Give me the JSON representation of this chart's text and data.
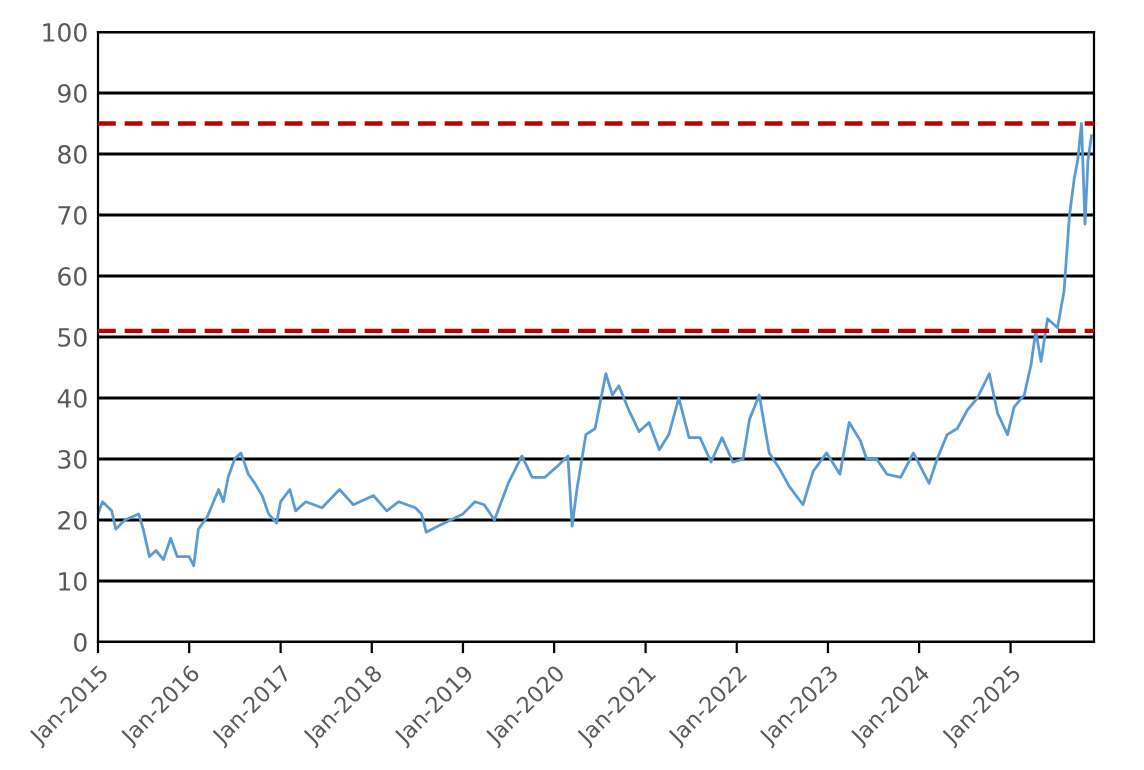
{
  "chart_data": {
    "type": "line",
    "xlim": [
      "2015-01-01",
      "2025-12-01"
    ],
    "xticks": [
      {
        "value": "2015-01-01",
        "label": "Jan-2015"
      },
      {
        "value": "2016-01-01",
        "label": "Jan-2016"
      },
      {
        "value": "2017-01-01",
        "label": "Jan-2017"
      },
      {
        "value": "2018-01-01",
        "label": "Jan-2018"
      },
      {
        "value": "2019-01-01",
        "label": "Jan-2019"
      },
      {
        "value": "2020-01-01",
        "label": "Jan-2020"
      },
      {
        "value": "2021-01-01",
        "label": "Jan-2021"
      },
      {
        "value": "2022-01-01",
        "label": "Jan-2022"
      },
      {
        "value": "2023-01-01",
        "label": "Jan-2023"
      },
      {
        "value": "2024-01-01",
        "label": "Jan-2024"
      },
      {
        "value": "2025-01-01",
        "label": "Jan-2025"
      }
    ],
    "ylim": [
      0,
      100
    ],
    "yticks": [
      0,
      10,
      20,
      30,
      40,
      50,
      60,
      70,
      80,
      90,
      100
    ],
    "grid": "y",
    "legend": false,
    "marker": "none",
    "line_style": "solid",
    "x": [
      "2015-01-01",
      "2015-01-19",
      "2015-02-25",
      "2015-03-13",
      "2015-04-19",
      "2015-06-13",
      "2015-07-01",
      "2015-07-26",
      "2015-08-21",
      "2015-09-20",
      "2015-10-19",
      "2015-11-14",
      "2016-01-01",
      "2016-01-19",
      "2016-02-07",
      "2016-03-13",
      "2016-04-28",
      "2016-05-17",
      "2016-06-05",
      "2016-07-01",
      "2016-07-26",
      "2016-08-25",
      "2016-09-20",
      "2016-10-19",
      "2016-11-14",
      "2016-12-16",
      "2017-01-01",
      "2017-02-07",
      "2017-03-02",
      "2017-04-12",
      "2017-06-16",
      "2017-08-25",
      "2017-10-19",
      "2018-01-08",
      "2018-03-02",
      "2018-04-19",
      "2018-06-24",
      "2018-07-19",
      "2018-08-07",
      "2018-09-24",
      "2018-10-19",
      "2019-01-01",
      "2019-02-18",
      "2019-03-27",
      "2019-05-07",
      "2019-07-01",
      "2019-08-25",
      "2019-10-05",
      "2019-11-25",
      "2020-01-19",
      "2020-02-25",
      "2020-03-13",
      "2020-04-01",
      "2020-05-07",
      "2020-06-13",
      "2020-07-26",
      "2020-08-21",
      "2020-09-16",
      "2020-10-26",
      "2020-12-06",
      "2021-01-15",
      "2021-02-25",
      "2021-04-04",
      "2021-05-14",
      "2021-06-24",
      "2021-08-07",
      "2021-09-20",
      "2021-11-03",
      "2021-12-16",
      "2022-01-26",
      "2022-02-21",
      "2022-04-01",
      "2022-05-11",
      "2022-06-20",
      "2022-07-30",
      "2022-09-23",
      "2022-11-03",
      "2022-12-27",
      "2023-02-18",
      "2023-03-27",
      "2023-05-11",
      "2023-06-05",
      "2023-07-15",
      "2023-08-25",
      "2023-10-19",
      "2023-12-09",
      "2024-02-10",
      "2024-03-13",
      "2024-04-22",
      "2024-06-02",
      "2024-07-12",
      "2024-08-21",
      "2024-10-08",
      "2024-11-10",
      "2024-12-20",
      "2025-01-15",
      "2025-02-25",
      "2025-03-24",
      "2025-04-12",
      "2025-05-03",
      "2025-05-29",
      "2025-07-08",
      "2025-08-03",
      "2025-08-25",
      "2025-09-13",
      "2025-09-27",
      "2025-10-12",
      "2025-10-26",
      "2025-11-07",
      "2025-11-21"
    ],
    "series": [
      {
        "color": "#5b9bd5",
        "values": [
          21,
          23,
          21.5,
          18.5,
          20,
          21,
          18.5,
          14,
          15,
          13.5,
          17,
          14,
          14,
          12.5,
          18.5,
          20.5,
          25,
          23,
          27,
          30,
          31,
          27.5,
          26,
          24,
          21,
          19.5,
          23,
          25,
          21.5,
          23,
          22,
          25,
          22.5,
          24,
          21.5,
          23,
          22,
          21,
          18,
          19,
          19.5,
          21,
          23,
          22.5,
          20,
          26,
          30.5,
          27,
          27,
          29,
          30.5,
          19,
          25,
          34,
          35,
          44,
          40.5,
          42,
          38,
          34.5,
          36,
          31.5,
          34,
          40,
          33.5,
          33.5,
          29.5,
          33.5,
          29.5,
          30,
          36.5,
          40.5,
          31,
          28.5,
          25.5,
          22.5,
          28,
          31,
          27.5,
          36,
          33,
          30,
          30,
          27.5,
          27,
          31,
          26,
          30,
          34,
          35,
          38,
          40,
          44,
          37.5,
          34,
          38.5,
          40.5,
          45.5,
          51,
          46,
          53,
          51.5,
          57.5,
          70,
          76,
          79,
          85,
          68.5,
          79,
          83
        ]
      }
    ],
    "ref_lines": [
      {
        "axis": "y",
        "value": 85,
        "color": "#c00000",
        "line_style": "dashed"
      },
      {
        "axis": "y",
        "value": 51,
        "color": "#c00000",
        "line_style": "dashed"
      }
    ]
  }
}
